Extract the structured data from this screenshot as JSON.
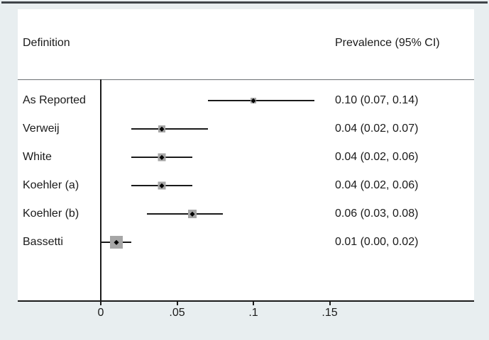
{
  "colors": {
    "figure_background": "#e8eef0",
    "plot_background": "#ffffff",
    "line": "#1a1a1a",
    "weight_box_fill": "#a6a6a6",
    "top_border": "#3f4449",
    "text": "#1a1a1a"
  },
  "chart_data": {
    "type": "scatter",
    "variant": "forest-plot",
    "title": "",
    "columns": {
      "left": "Definition",
      "right": "Prevalence (95% CI)"
    },
    "rows": [
      {
        "label": "As Reported",
        "estimate": 0.1,
        "ci_lower": 0.07,
        "ci_upper": 0.14,
        "display": "0.10 (0.07, 0.14)",
        "marker_size": 8
      },
      {
        "label": "Verweij",
        "estimate": 0.04,
        "ci_lower": 0.02,
        "ci_upper": 0.07,
        "display": "0.04 (0.02, 0.07)",
        "marker_size": 10
      },
      {
        "label": "White",
        "estimate": 0.04,
        "ci_lower": 0.02,
        "ci_upper": 0.06,
        "display": "0.04 (0.02, 0.06)",
        "marker_size": 11
      },
      {
        "label": "Koehler (a)",
        "estimate": 0.04,
        "ci_lower": 0.02,
        "ci_upper": 0.06,
        "display": "0.04 (0.02, 0.06)",
        "marker_size": 11
      },
      {
        "label": "Koehler (b)",
        "estimate": 0.06,
        "ci_lower": 0.03,
        "ci_upper": 0.08,
        "display": "0.06 (0.03, 0.08)",
        "marker_size": 12
      },
      {
        "label": "Bassetti",
        "estimate": 0.01,
        "ci_lower": 0.0,
        "ci_upper": 0.02,
        "display": "0.01 (0.00, 0.02)",
        "marker_size": 18
      }
    ],
    "x_axis": {
      "tick_labels": [
        "0",
        ".05",
        ".1",
        ".15"
      ],
      "tick_values": [
        0,
        0.05,
        0.1,
        0.15
      ],
      "xlim": [
        -0.054,
        0.245
      ],
      "grid": false
    },
    "legend": "none"
  }
}
